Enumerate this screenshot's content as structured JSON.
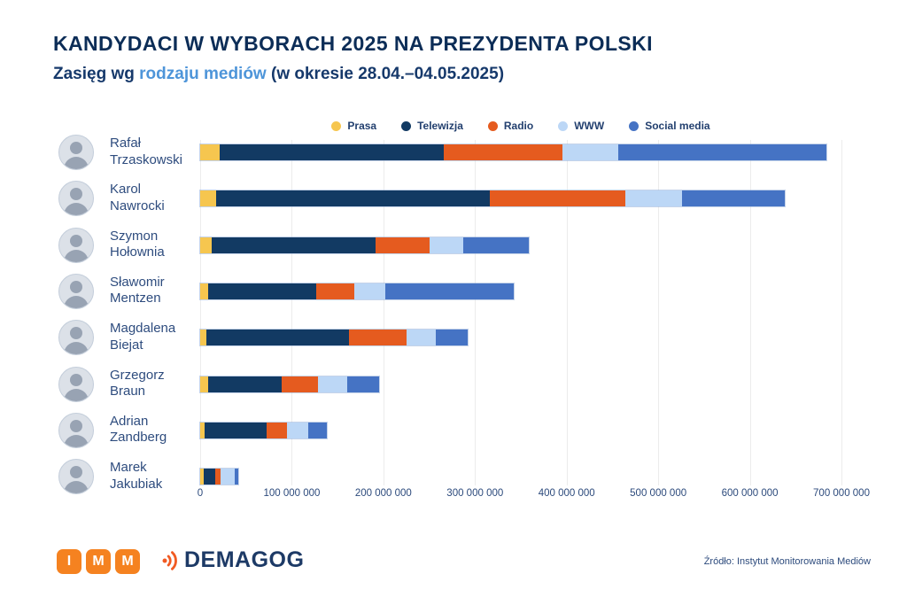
{
  "header": {
    "title": "KANDYDACI W WYBORACH 2025 NA PREZYDENTA POLSKI",
    "subtitle_prefix": "Zasięg wg ",
    "subtitle_highlight": "rodzaju mediów",
    "subtitle_suffix": " (w okresie 28.04.–04.05.2025)"
  },
  "chart_data": {
    "type": "bar",
    "stacked": true,
    "orientation": "horizontal",
    "categories": [
      "Rafał Trzaskowski",
      "Karol Nawrocki",
      "Szymon Hołownia",
      "Sławomir Mentzen",
      "Magdalena Biejat",
      "Grzegorz Braun",
      "Adrian Zandberg",
      "Marek Jakubiak"
    ],
    "categories_two_line": [
      [
        "Rafał",
        "Trzaskowski"
      ],
      [
        "Karol",
        "Nawrocki"
      ],
      [
        "Szymon",
        "Hołownia"
      ],
      [
        "Sławomir",
        "Mentzen"
      ],
      [
        "Magdalena",
        "Biejat"
      ],
      [
        "Grzegorz",
        "Braun"
      ],
      [
        "Adrian",
        "Zandberg"
      ],
      [
        "Marek",
        "Jakubiak"
      ]
    ],
    "series": [
      {
        "name": "Prasa",
        "color": "#F6C64F",
        "values": [
          21000000,
          17000000,
          13000000,
          9000000,
          7000000,
          9000000,
          5000000,
          4000000
        ]
      },
      {
        "name": "Telewizja",
        "color": "#123A63",
        "values": [
          245000000,
          299000000,
          178000000,
          118000000,
          155000000,
          80000000,
          68000000,
          12000000
        ]
      },
      {
        "name": "Radio",
        "color": "#E55B1F",
        "values": [
          129000000,
          148000000,
          59000000,
          41000000,
          63000000,
          40000000,
          22000000,
          6000000
        ]
      },
      {
        "name": "WWW",
        "color": "#BCD7F6",
        "values": [
          61000000,
          62000000,
          37000000,
          34000000,
          32000000,
          32000000,
          23000000,
          16000000
        ]
      },
      {
        "name": "Social media",
        "color": "#4573C4",
        "values": [
          228000000,
          112000000,
          72000000,
          140000000,
          35000000,
          34000000,
          20000000,
          4000000
        ]
      }
    ],
    "xlim": [
      0,
      700000000
    ],
    "xticks": [
      0,
      100000000,
      200000000,
      300000000,
      400000000,
      500000000,
      600000000,
      700000000
    ],
    "xtick_labels": [
      "0",
      "100 000 000",
      "200 000 000",
      "300 000 000",
      "400 000 000",
      "500 000 000",
      "600 000 000",
      "700 000 000"
    ],
    "grid": "vertical",
    "legend_position": "top-center"
  },
  "footer": {
    "imm_letters": [
      "I",
      "M",
      "M"
    ],
    "demagog_text": "DEMAGOG",
    "source": "Źródło: Instytut Monitorowania Mediów"
  },
  "colors": {
    "title": "#0C2D57",
    "subtitle_highlight": "#4E95D9",
    "axis_text": "#2C4A7C",
    "gridline": "#ececec",
    "imm_orange": "#F58220",
    "demagog_navy": "#1D3A66"
  }
}
